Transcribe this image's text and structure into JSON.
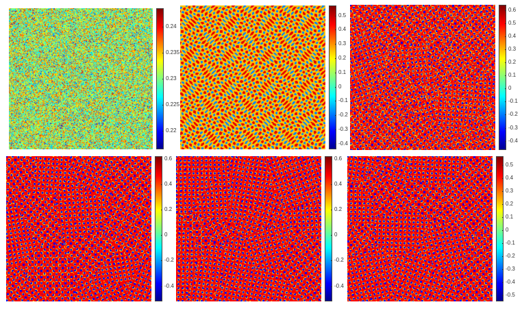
{
  "figure": {
    "panels": [
      {
        "id": "p1",
        "field_style": "noise",
        "ticks": [
          "0.24",
          "0.235",
          "0.23",
          "0.225",
          "0.22"
        ],
        "tick_values": [
          0.24,
          0.235,
          0.23,
          0.225,
          0.22
        ],
        "range": [
          0.2165,
          0.2435
        ]
      },
      {
        "id": "p2",
        "field_style": "labyrinth",
        "ticks": [
          "0.5",
          "0.4",
          "0.3",
          "0.2",
          "0.1",
          "0",
          "-0.1",
          "-0.2",
          "-0.3",
          "-0.4"
        ],
        "tick_values": [
          0.5,
          0.4,
          0.3,
          0.2,
          0.1,
          0,
          -0.1,
          -0.2,
          -0.3,
          -0.4
        ],
        "range": [
          -0.44,
          0.57
        ]
      },
      {
        "id": "p3",
        "field_style": "dots-mixed",
        "ticks": [
          "0.6",
          "0.5",
          "0.4",
          "0.3",
          "0.2",
          "0.1",
          "0",
          "-0.1",
          "-0.2",
          "-0.3",
          "-0.4"
        ],
        "tick_values": [
          0.6,
          0.5,
          0.4,
          0.3,
          0.2,
          0.1,
          0,
          -0.1,
          -0.2,
          -0.3,
          -0.4
        ],
        "range": [
          -0.47,
          0.64
        ]
      },
      {
        "id": "p4",
        "field_style": "dots",
        "ticks": [
          "0.6",
          "0.4",
          "0.2",
          "0",
          "-0.2",
          "-0.4"
        ],
        "tick_values": [
          0.6,
          0.4,
          0.2,
          0,
          -0.2,
          -0.4
        ],
        "range": [
          -0.52,
          0.62
        ]
      },
      {
        "id": "p5",
        "field_style": "dots",
        "ticks": [
          "0.6",
          "0.4",
          "0.2",
          "0",
          "-0.2",
          "-0.4"
        ],
        "tick_values": [
          0.6,
          0.4,
          0.2,
          0,
          -0.2,
          -0.4
        ],
        "range": [
          -0.52,
          0.62
        ]
      },
      {
        "id": "p6",
        "field_style": "dots-grains",
        "ticks": [
          "0.5",
          "0.4",
          "0.3",
          "0.2",
          "0.1",
          "0",
          "-0.1",
          "-0.2",
          "-0.3",
          "-0.4",
          "-0.5"
        ],
        "tick_values": [
          0.5,
          0.4,
          0.3,
          0.2,
          0.1,
          0,
          -0.1,
          -0.2,
          -0.3,
          -0.4,
          -0.5
        ],
        "range": [
          -0.55,
          0.57
        ]
      }
    ],
    "colormap": "jet"
  }
}
